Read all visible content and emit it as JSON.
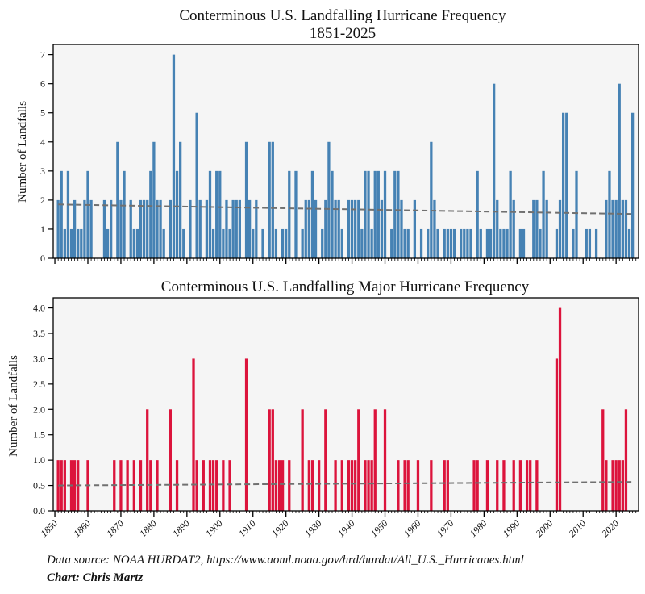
{
  "chart_data": [
    {
      "type": "bar",
      "title": "Conterminous U.S. Landfalling Hurricane Frequency",
      "subtitle": "1851-2025",
      "xlabel": "",
      "ylabel": "Number of Landfalls",
      "ylim": [
        0,
        7.35
      ],
      "yticks": [
        "0",
        "1",
        "2",
        "3",
        "4",
        "5",
        "6",
        "7"
      ],
      "ytick_values": [
        0,
        1,
        2,
        3,
        4,
        5,
        6,
        7
      ],
      "x_start": 1851,
      "x_end": 2025,
      "bar_color": "#4682b4",
      "background": "#f5f5f5",
      "trend": {
        "style": "dashed",
        "color": "#707070",
        "start_value": 1.85,
        "end_value": 1.52
      },
      "values": [
        2,
        3,
        1,
        3,
        1,
        2,
        1,
        1,
        2,
        3,
        2,
        0,
        0,
        0,
        2,
        1,
        2,
        0,
        4,
        2,
        3,
        0,
        2,
        1,
        1,
        2,
        2,
        2,
        3,
        4,
        2,
        2,
        1,
        0,
        2,
        7,
        3,
        4,
        1,
        0,
        2,
        0,
        5,
        2,
        0,
        2,
        3,
        1,
        3,
        3,
        1,
        2,
        1,
        2,
        2,
        2,
        0,
        4,
        2,
        1,
        2,
        0,
        1,
        0,
        4,
        4,
        1,
        0,
        1,
        1,
        3,
        0,
        3,
        0,
        1,
        2,
        2,
        3,
        2,
        0,
        1,
        2,
        4,
        3,
        2,
        2,
        1,
        0,
        2,
        2,
        2,
        2,
        1,
        3,
        3,
        1,
        3,
        3,
        2,
        3,
        0,
        1,
        3,
        3,
        2,
        1,
        1,
        0,
        2,
        0,
        1,
        0,
        1,
        4,
        2,
        1,
        0,
        1,
        1,
        1,
        1,
        0,
        1,
        1,
        1,
        1,
        0,
        3,
        1,
        0,
        1,
        1,
        6,
        2,
        1,
        1,
        1,
        3,
        2,
        0,
        1,
        1,
        0,
        0,
        2,
        2,
        1,
        3,
        2,
        0,
        0,
        1,
        2,
        5,
        5,
        0,
        1,
        3,
        0,
        0,
        1,
        1,
        0,
        1,
        0,
        0,
        2,
        3,
        2,
        2,
        6,
        2,
        2,
        1,
        5
      ]
    },
    {
      "type": "bar",
      "title": "Conterminous U.S. Landfalling Major Hurricane Frequency",
      "xlabel": "",
      "ylabel": "Number of Landfalls",
      "ylim": [
        0,
        4.2
      ],
      "yticks": [
        "0.0",
        "0.5",
        "1.0",
        "1.5",
        "2.0",
        "2.5",
        "3.0",
        "3.5",
        "4.0"
      ],
      "ytick_values": [
        0,
        0.5,
        1,
        1.5,
        2,
        2.5,
        3,
        3.5,
        4
      ],
      "x_start": 1851,
      "x_end": 2025,
      "bar_color": "#dc143c",
      "background": "#f5f5f5",
      "trend": {
        "style": "dashed",
        "color": "#707070",
        "start_value": 0.5,
        "end_value": 0.57
      },
      "values": [
        1,
        1,
        1,
        0,
        1,
        1,
        1,
        0,
        0,
        1,
        0,
        0,
        0,
        0,
        0,
        0,
        0,
        1,
        0,
        1,
        0,
        1,
        0,
        1,
        0,
        1,
        0,
        2,
        1,
        0,
        1,
        0,
        0,
        0,
        2,
        0,
        1,
        0,
        0,
        0,
        0,
        3,
        1,
        0,
        1,
        0,
        1,
        1,
        1,
        0,
        1,
        0,
        1,
        0,
        0,
        0,
        0,
        3,
        0,
        0,
        0,
        0,
        0,
        0,
        2,
        2,
        1,
        1,
        1,
        0,
        1,
        0,
        0,
        0,
        2,
        0,
        1,
        1,
        0,
        1,
        0,
        2,
        0,
        0,
        1,
        0,
        1,
        0,
        1,
        1,
        1,
        2,
        0,
        1,
        1,
        1,
        2,
        0,
        0,
        2,
        0,
        0,
        0,
        1,
        0,
        1,
        1,
        0,
        0,
        1,
        0,
        0,
        0,
        1,
        0,
        0,
        0,
        1,
        1,
        0,
        0,
        0,
        0,
        0,
        0,
        0,
        1,
        1,
        0,
        0,
        1,
        0,
        0,
        1,
        0,
        1,
        0,
        0,
        1,
        0,
        1,
        0,
        1,
        1,
        0,
        1,
        0,
        0,
        0,
        0,
        0,
        3,
        4,
        0,
        0,
        0,
        0,
        0,
        0,
        0,
        0,
        0,
        0,
        0,
        0,
        2,
        1,
        0,
        1,
        1,
        1,
        1,
        2
      ],
      "xticks": [
        "1850",
        "1860",
        "1870",
        "1880",
        "1890",
        "1900",
        "1910",
        "1920",
        "1930",
        "1940",
        "1950",
        "1960",
        "1970",
        "1980",
        "1990",
        "2000",
        "2010",
        "2020"
      ]
    }
  ],
  "footer": {
    "source": "Data source: NOAA HURDAT2, https://www.aoml.noaa.gov/hrd/hurdat/All_U.S._Hurricanes.html",
    "credit": "Chart: Chris Martz"
  }
}
